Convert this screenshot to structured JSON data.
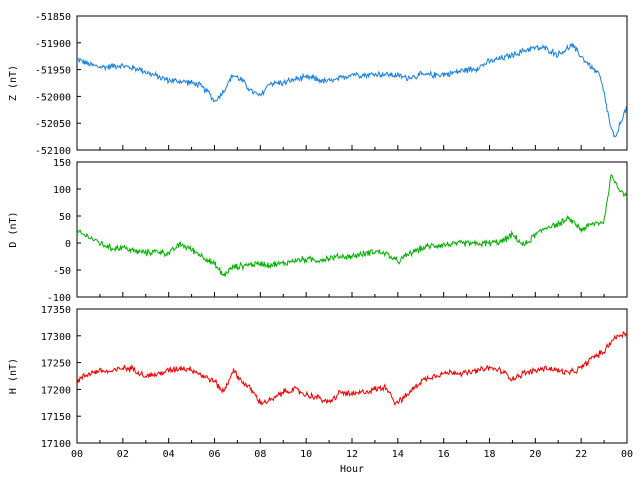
{
  "chart_data": [
    {
      "type": "line",
      "ylabel": "Z (nT)",
      "ylim": [
        -52100,
        -51850
      ],
      "yticks": [
        -51850,
        -51900,
        -51950,
        -52000,
        -52050,
        -52100
      ],
      "series": [
        {
          "color": "#1a7fdc",
          "x": [
            0,
            0.5,
            1,
            1.3,
            1.8,
            2.2,
            2.8,
            3.2,
            4,
            4.8,
            5.3,
            5.8,
            6.0,
            6.4,
            6.8,
            7.2,
            7.6,
            8.0,
            8.4,
            9.0,
            9.6,
            10.2,
            10.8,
            11.3,
            12.0,
            12.6,
            13.2,
            13.8,
            14.4,
            15.0,
            15.6,
            16.2,
            16.8,
            17.4,
            18.0,
            18.6,
            19.2,
            19.8,
            20.4,
            21.0,
            21.6,
            22.2,
            22.8,
            23.0,
            23.3,
            23.5,
            23.7,
            24
          ],
          "values": [
            -51930,
            -51940,
            -51945,
            -51945,
            -51942,
            -51945,
            -51950,
            -51958,
            -51970,
            -51973,
            -51978,
            -51995,
            -52010,
            -51990,
            -51960,
            -51970,
            -51990,
            -52000,
            -51975,
            -51975,
            -51967,
            -51965,
            -51972,
            -51970,
            -51958,
            -51960,
            -51958,
            -51960,
            -51965,
            -51960,
            -51960,
            -51958,
            -51952,
            -51948,
            -51935,
            -51928,
            -51920,
            -51910,
            -51910,
            -51922,
            -51905,
            -51935,
            -51960,
            -51995,
            -52060,
            -52080,
            -52050,
            -52020
          ]
        }
      ]
    },
    {
      "type": "line",
      "ylabel": "D (nT)",
      "ylim": [
        -100,
        150
      ],
      "yticks": [
        150,
        100,
        50,
        0,
        -50,
        -100
      ],
      "series": [
        {
          "color": "#00b000",
          "x": [
            0,
            0.5,
            1,
            1.5,
            2,
            2.5,
            3,
            3.5,
            4,
            4.5,
            5,
            5.5,
            6.0,
            6.4,
            6.8,
            7.5,
            8,
            8.5,
            9,
            9.5,
            10,
            10.5,
            11,
            11.5,
            12,
            12.5,
            13,
            13.5,
            14,
            14.5,
            15,
            15.5,
            16,
            16.5,
            17,
            17.5,
            18,
            18.5,
            19,
            19.5,
            20,
            20.5,
            21,
            21.5,
            22,
            22.5,
            23.0,
            23.3,
            23.6,
            24
          ],
          "values": [
            20,
            12,
            0,
            -10,
            -8,
            -15,
            -18,
            -15,
            -20,
            -2,
            -12,
            -25,
            -40,
            -60,
            -45,
            -40,
            -38,
            -40,
            -38,
            -32,
            -30,
            -32,
            -28,
            -25,
            -25,
            -20,
            -15,
            -20,
            -35,
            -20,
            -10,
            -5,
            -3,
            -2,
            0,
            -2,
            0,
            2,
            15,
            -5,
            15,
            30,
            35,
            45,
            25,
            35,
            40,
            125,
            105,
            85
          ]
        }
      ]
    },
    {
      "type": "line",
      "ylabel": "H (nT)",
      "xlabel": "Hour",
      "ylim": [
        17100,
        17350
      ],
      "yticks": [
        17350,
        17300,
        17250,
        17200,
        17150,
        17100
      ],
      "xticks": [
        "00",
        "02",
        "04",
        "06",
        "08",
        "10",
        "12",
        "14",
        "16",
        "18",
        "20",
        "22",
        "00"
      ],
      "xlim": [
        0,
        24
      ],
      "series": [
        {
          "color": "#ee0000",
          "x": [
            0,
            0.5,
            1,
            1.5,
            2,
            2.5,
            3,
            3.5,
            4,
            4.5,
            5,
            5.5,
            6.0,
            6.4,
            6.8,
            7.2,
            7.6,
            8.0,
            8.5,
            9,
            9.5,
            10,
            10.5,
            11,
            11.5,
            12,
            12.5,
            13,
            13.5,
            13.9,
            14.3,
            15,
            15.5,
            16,
            16.5,
            17,
            17.5,
            18,
            18.5,
            19,
            19.5,
            20,
            20.5,
            21,
            21.5,
            22,
            22.5,
            23,
            23.3,
            23.6,
            24
          ],
          "values": [
            17215,
            17230,
            17235,
            17233,
            17240,
            17238,
            17225,
            17228,
            17235,
            17240,
            17238,
            17225,
            17215,
            17195,
            17235,
            17215,
            17200,
            17175,
            17180,
            17195,
            17200,
            17190,
            17185,
            17175,
            17195,
            17190,
            17195,
            17200,
            17205,
            17175,
            17185,
            17215,
            17225,
            17230,
            17232,
            17230,
            17235,
            17240,
            17235,
            17220,
            17230,
            17235,
            17240,
            17235,
            17230,
            17240,
            17260,
            17270,
            17290,
            17300,
            17305
          ]
        }
      ]
    }
  ]
}
